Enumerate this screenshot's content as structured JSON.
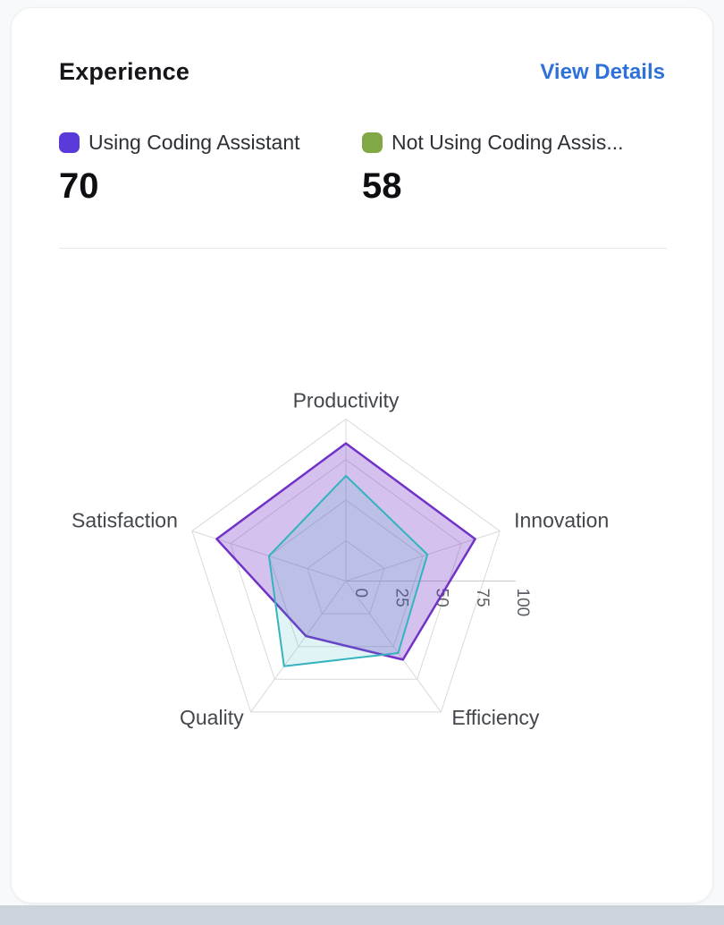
{
  "card": {
    "title": "Experience",
    "view_details_label": "View Details",
    "link_color": "#2e71d9",
    "legend": [
      {
        "label": "Using Coding Assistant",
        "value": "70",
        "swatch_color": "#5a3ad8"
      },
      {
        "label": "Not Using Coding Assis...",
        "value": "58",
        "swatch_color": "#80a844"
      }
    ]
  },
  "chart_data": {
    "type": "radar",
    "title": "Experience",
    "categories": [
      "Productivity",
      "Innovation",
      "Efficiency",
      "Quality",
      "Satisfaction"
    ],
    "series": [
      {
        "name": "Using Coding Assistant",
        "color": "#7132c8",
        "fill_opacity": 0.3,
        "values": [
          85,
          84,
          60,
          42,
          84
        ]
      },
      {
        "name": "Not Using Coding Assistant",
        "color": "#35b3be",
        "fill_opacity": 0.15,
        "values": [
          65,
          53,
          55,
          65,
          50
        ]
      }
    ],
    "radial_ticks": [
      0,
      25,
      50,
      75,
      100
    ],
    "rlim": [
      0,
      100
    ],
    "grid": true,
    "grid_color": "#d9d9db",
    "axis_line_color": "#c7c9cc",
    "category_label_color": "#43474d",
    "tick_label_color": "#5a5e64",
    "tick_label_rotation_deg": 90,
    "legend_position": "top"
  }
}
